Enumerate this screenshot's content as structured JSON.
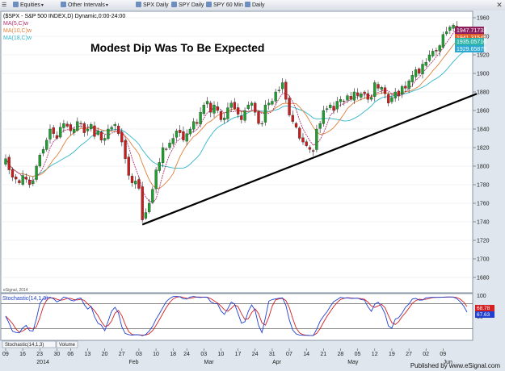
{
  "toolbar": {
    "items": [
      {
        "label": "Equities",
        "icon": "equities-icon"
      },
      {
        "label": "Other Intervals",
        "icon": "intervals-icon"
      },
      {
        "label": "SPX Daily",
        "icon": "chart-icon"
      },
      {
        "label": "SPY Daily",
        "icon": "chart-icon"
      },
      {
        "label": "SPY 60 Min",
        "icon": "chart-icon"
      },
      {
        "label": "Daily",
        "icon": "chart-icon"
      }
    ]
  },
  "header": {
    "title": "($SPX - S&P 500 INDEX,D) Dynamic,0:00-24:00",
    "legend": [
      {
        "label": "MA(5,C)w",
        "color": "#b03070"
      },
      {
        "label": "MA(10,C)w",
        "color": "#e07f3a"
      },
      {
        "label": "MA(18,C)w",
        "color": "#2fb5c8"
      }
    ]
  },
  "annotation": "Modest Dip Was To Be Expected",
  "watermark": "eSignal, 2014",
  "price_tags": [
    {
      "text": "1947.71733",
      "color": "#8e1e5e"
    },
    {
      "text": "1941.31545",
      "color": "#e0602a"
    },
    {
      "text": "1935.05716",
      "color": "#2fb5a8"
    },
    {
      "text": "1929.65875",
      "color": "#2aa8d0"
    }
  ],
  "stoch": {
    "title": "Stochastic(14,1,3)",
    "tags": [
      {
        "text": "68.78",
        "color": "#d42020"
      },
      {
        "text": "67.63",
        "color": "#2040d0"
      }
    ]
  },
  "bottom_tabs": [
    "Stochastic(14,1,3)",
    "Volume"
  ],
  "footer": "Published by www.eSignal.com",
  "chart_data": {
    "type": "candlestick",
    "title": "($SPX - S&P 500 INDEX,D) Dynamic,0:00-24:00",
    "ylim": [
      1680,
      1960
    ],
    "y_ticks": [
      1680,
      1700,
      1720,
      1740,
      1760,
      1780,
      1800,
      1820,
      1840,
      1860,
      1880,
      1900,
      1920,
      1940,
      1960
    ],
    "x_ticks": [
      "09",
      "16",
      "23",
      "30",
      "06",
      "13",
      "20",
      "27",
      "03",
      "10",
      "18",
      "24",
      "03",
      "10",
      "17",
      "24",
      "31",
      "07",
      "14",
      "21",
      "28",
      "05",
      "12",
      "19",
      "27",
      "02",
      "09"
    ],
    "x_month_labels": [
      {
        "label": "2014",
        "index": 10
      },
      {
        "label": "Feb",
        "index": 37
      },
      {
        "label": "Mar",
        "index": 59
      },
      {
        "label": "Apr",
        "index": 79
      },
      {
        "label": "May",
        "index": 101
      },
      {
        "label": "Jun",
        "index": 129
      }
    ],
    "closes": [
      1808,
      1796,
      1788,
      1786,
      1782,
      1790,
      1786,
      1780,
      1784,
      1800,
      1812,
      1818,
      1828,
      1840,
      1835,
      1830,
      1842,
      1846,
      1843,
      1838,
      1840,
      1848,
      1846,
      1836,
      1840,
      1845,
      1832,
      1838,
      1828,
      1830,
      1840,
      1842,
      1845,
      1835,
      1826,
      1808,
      1790,
      1782,
      1784,
      1776,
      1742,
      1750,
      1760,
      1775,
      1796,
      1804,
      1820,
      1818,
      1825,
      1830,
      1838,
      1836,
      1828,
      1835,
      1840,
      1848,
      1846,
      1858,
      1866,
      1870,
      1858,
      1866,
      1860,
      1850,
      1852,
      1863,
      1868,
      1862,
      1856,
      1850,
      1860,
      1866,
      1868,
      1858,
      1846,
      1846,
      1866,
      1868,
      1870,
      1880,
      1882,
      1890,
      1872,
      1855,
      1848,
      1842,
      1830,
      1826,
      1822,
      1818,
      1816,
      1840,
      1846,
      1860,
      1862,
      1866,
      1860,
      1870,
      1872,
      1870,
      1876,
      1872,
      1880,
      1876,
      1878,
      1878,
      1872,
      1874,
      1890,
      1884,
      1885,
      1878,
      1868,
      1874,
      1880,
      1876,
      1886,
      1884,
      1892,
      1898,
      1904,
      1900,
      1910,
      1912,
      1920,
      1924,
      1924,
      1930,
      1942,
      1945,
      1950,
      1952,
      1948,
      1944,
      1936,
      1932
    ],
    "ma_series": [
      "MA(5,C)w",
      "MA(10,C)w",
      "MA(18,C)w"
    ],
    "trendline": {
      "from": {
        "index": 40,
        "value": 1737
      },
      "to": {
        "index": 142,
        "value": 1884
      }
    },
    "stochastic": {
      "ylim": [
        0,
        100
      ],
      "y_ticks": [
        50,
        100
      ],
      "k_last": 68.78,
      "d_last": 67.63
    }
  }
}
